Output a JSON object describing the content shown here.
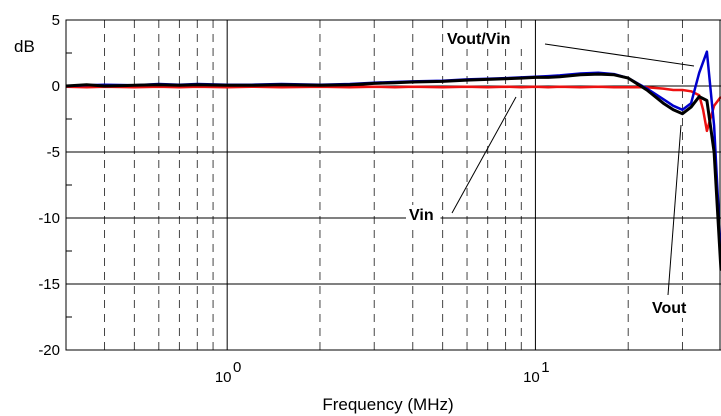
{
  "chart_data": {
    "type": "line",
    "title": "",
    "xlabel": "Frequency (MHz)",
    "ylabel": "dB",
    "x_scale": "log",
    "xlim": [
      0.3,
      40
    ],
    "ylim": [
      -20,
      5
    ],
    "yticks": [
      5,
      0,
      -5,
      -10,
      -15,
      -20
    ],
    "ytick_labels": [
      "5",
      "0",
      "-5",
      "-10",
      "-15",
      "-20"
    ],
    "xticks": [
      1,
      10
    ],
    "xtick_labels": [
      {
        "base": "10",
        "exp": "0"
      },
      {
        "base": "10",
        "exp": "1"
      }
    ],
    "grid": {
      "major": true,
      "minor_dashed": true
    },
    "series": [
      {
        "name": "Vin",
        "color": "#000000",
        "x": [
          0.3,
          0.35,
          0.4,
          0.5,
          0.6,
          0.7,
          0.8,
          1,
          1.2,
          1.5,
          2,
          2.5,
          3,
          3.5,
          4,
          5,
          6,
          7,
          8,
          9,
          10,
          11,
          12,
          14,
          16,
          18,
          20,
          23,
          26,
          28,
          30,
          32,
          34,
          36,
          38,
          40
        ],
        "y": [
          0,
          0.1,
          0.0,
          0.05,
          0.1,
          0.05,
          0.1,
          0.05,
          0.05,
          0.1,
          0.05,
          0.1,
          0.2,
          0.25,
          0.3,
          0.35,
          0.45,
          0.5,
          0.55,
          0.6,
          0.65,
          0.65,
          0.7,
          0.85,
          0.9,
          0.85,
          0.6,
          -0.3,
          -1.3,
          -1.8,
          -2.1,
          -1.6,
          -0.8,
          -1.1,
          -5,
          -14
        ]
      },
      {
        "name": "Vout/Vin",
        "color": "#0000cc",
        "x": [
          0.3,
          0.35,
          0.4,
          0.5,
          0.6,
          0.7,
          0.8,
          1,
          1.2,
          1.5,
          2,
          2.5,
          3,
          3.5,
          4,
          5,
          6,
          7,
          8,
          9,
          10,
          11,
          12,
          14,
          16,
          18,
          20,
          23,
          26,
          28,
          30,
          32,
          34,
          36,
          38,
          40
        ],
        "y": [
          0,
          0.05,
          0.1,
          0.05,
          0.15,
          0.1,
          0.15,
          0.1,
          0.1,
          0.15,
          0.1,
          0.15,
          0.25,
          0.3,
          0.35,
          0.4,
          0.5,
          0.55,
          0.6,
          0.65,
          0.7,
          0.75,
          0.8,
          0.95,
          1.0,
          0.9,
          0.6,
          -0.2,
          -1.0,
          -1.5,
          -1.8,
          -1.3,
          1.0,
          2.6,
          -3,
          -13
        ]
      },
      {
        "name": "Vout",
        "color": "#ee1111",
        "x": [
          0.3,
          0.35,
          0.4,
          0.5,
          0.6,
          0.7,
          0.8,
          1,
          1.2,
          1.5,
          2,
          2.5,
          3,
          3.5,
          4,
          5,
          6,
          7,
          8,
          9,
          10,
          11,
          12,
          14,
          16,
          18,
          20,
          23,
          26,
          28,
          30,
          32,
          34,
          35,
          36,
          38,
          40
        ],
        "y": [
          -0.05,
          -0.1,
          -0.05,
          -0.1,
          -0.05,
          -0.1,
          -0.05,
          -0.1,
          -0.05,
          -0.1,
          -0.05,
          -0.1,
          -0.05,
          -0.1,
          -0.05,
          -0.1,
          -0.05,
          -0.1,
          -0.05,
          -0.1,
          -0.05,
          -0.1,
          -0.05,
          -0.1,
          -0.05,
          -0.1,
          -0.1,
          -0.1,
          -0.2,
          -0.3,
          -0.3,
          -0.4,
          -0.7,
          -1.8,
          -3.4,
          -1.5,
          -0.8
        ]
      }
    ],
    "annotations": [
      {
        "text": "Vout/Vin"
      },
      {
        "text": "Vin"
      },
      {
        "text": "Vout"
      }
    ]
  }
}
